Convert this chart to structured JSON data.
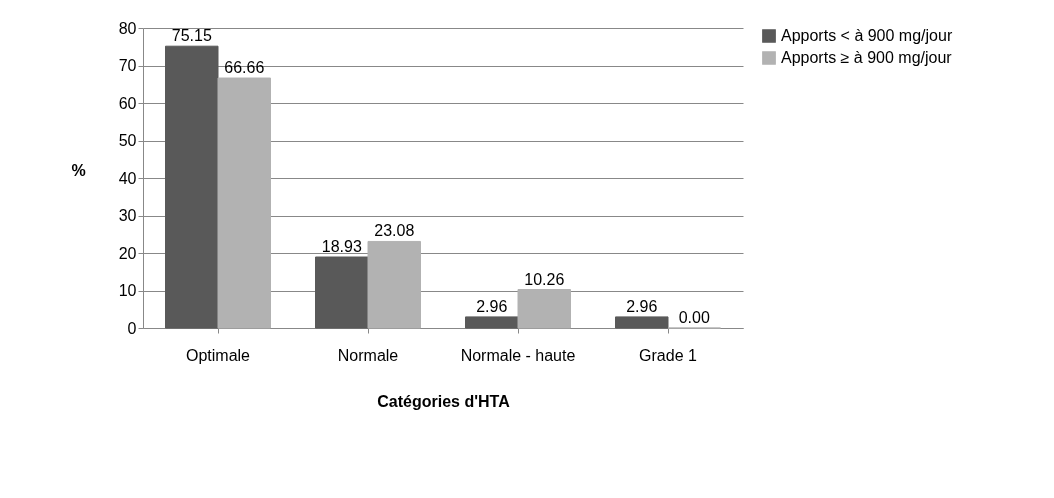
{
  "chart_data": {
    "type": "bar",
    "xlabel": "Catégories d'HTA",
    "ylabel": "%",
    "categories": [
      "Optimale",
      "Normale",
      "Normale - haute",
      "Grade 1"
    ],
    "series": [
      {
        "name": "Apports < à 900 mg/jour",
        "color": "#595959",
        "values": [
          75.15,
          18.93,
          2.96,
          2.96
        ],
        "value_labels": [
          "75.15",
          "18.93",
          "2.96",
          "2.96"
        ]
      },
      {
        "name": "Apports ≥ à 900 mg/jour",
        "color": "#b2b2b2",
        "values": [
          66.66,
          23.08,
          10.26,
          0
        ],
        "value_labels": [
          "66.66",
          "23.08",
          "10.26",
          "0.00"
        ]
      }
    ],
    "ylim": [
      0,
      80
    ],
    "yticks": [
      0,
      10,
      20,
      30,
      40,
      50,
      60,
      70,
      80
    ],
    "grid": "y",
    "legend": "right"
  }
}
